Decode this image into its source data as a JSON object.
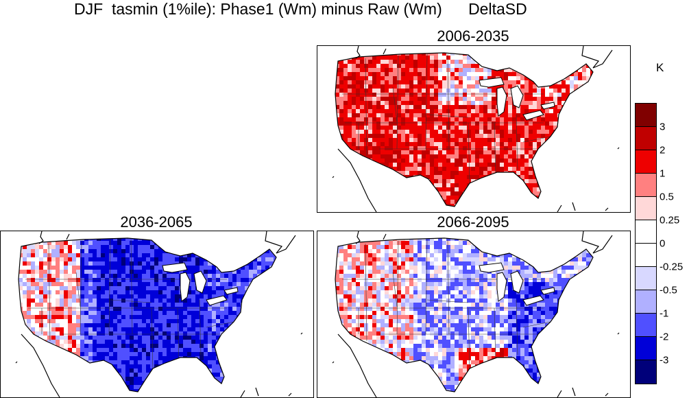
{
  "title": "DJF  tasmin (1%ile): Phase1 (Wm) minus Raw (Wm)      DeltaSD",
  "panels": [
    {
      "period": "2006-2035",
      "pattern": "warming"
    },
    {
      "period": "2036-2065",
      "pattern": "cooling"
    },
    {
      "period": "2066-2095",
      "pattern": "mixed"
    }
  ],
  "colorbar": {
    "unit": "K",
    "colors": [
      "#800000",
      "#c00000",
      "#ee0000",
      "#ff8080",
      "#ffd8d8",
      "#ffffff",
      "#ffffff",
      "#d8d8ff",
      "#b0b0ff",
      "#5050ff",
      "#0000d8",
      "#00007a"
    ],
    "labels": [
      "3",
      "2",
      "1",
      "0.5",
      "0.25",
      "0",
      "-0.25",
      "-0.5",
      "-1",
      "-2",
      "-3"
    ]
  }
}
